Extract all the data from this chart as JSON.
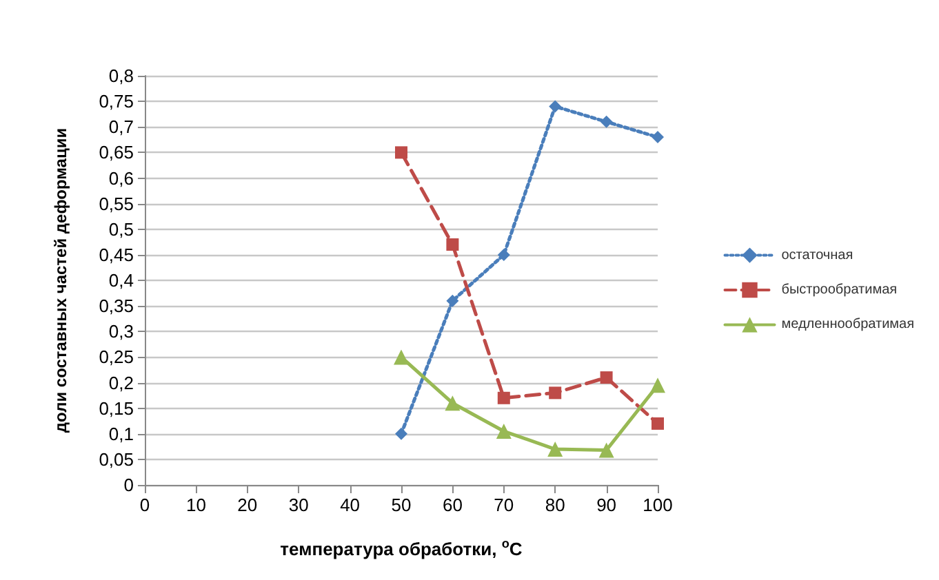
{
  "chart_data": {
    "type": "line",
    "xlabel": "температура обработки, $^{o}$C",
    "ylabel": "доли составных частей деформации",
    "x": [
      50,
      60,
      70,
      80,
      90,
      100
    ],
    "series": [
      {
        "name": "остаточная",
        "color": "#4a7ebb",
        "marker": "diamond",
        "line_style": "dotted",
        "values": [
          0.1,
          0.36,
          0.45,
          0.74,
          0.71,
          0.68
        ]
      },
      {
        "name": "быстрообратимая",
        "color": "#be4b48",
        "marker": "square",
        "line_style": "dashed",
        "values": [
          0.65,
          0.47,
          0.17,
          0.18,
          0.21,
          0.12
        ]
      },
      {
        "name": "медленнообратимая",
        "color": "#98b954",
        "marker": "triangle",
        "line_style": "solid",
        "values": [
          0.25,
          0.16,
          0.105,
          0.07,
          0.068,
          0.195
        ]
      }
    ],
    "xlim": [
      0,
      100
    ],
    "xticks": [
      0,
      10,
      20,
      30,
      40,
      50,
      60,
      70,
      80,
      90,
      100
    ],
    "ylim": [
      0,
      0.8
    ],
    "yticks": [
      0,
      {
        "value": 0.05,
        "label": "0,05"
      },
      {
        "value": 0.1,
        "label": "0,1"
      },
      {
        "value": 0.15,
        "label": "0,15"
      },
      {
        "value": 0.2,
        "label": "0,2"
      },
      {
        "value": 0.25,
        "label": "0,25"
      },
      {
        "value": 0.3,
        "label": "0,3"
      },
      {
        "value": 0.35,
        "label": "0,35"
      },
      {
        "value": 0.4,
        "label": "0,4"
      },
      {
        "value": 0.45,
        "label": "0,45"
      },
      {
        "value": 0.5,
        "label": "0,5"
      },
      {
        "value": 0.55,
        "label": "0,55"
      },
      {
        "value": 0.6,
        "label": "0,6"
      },
      {
        "value": 0.65,
        "label": "0,65"
      },
      {
        "value": 0.7,
        "label": "0,7"
      },
      {
        "value": 0.75,
        "label": "0,75"
      },
      {
        "value": 0.8,
        "label": "0,8"
      }
    ],
    "grid": "y",
    "legend": "right"
  }
}
